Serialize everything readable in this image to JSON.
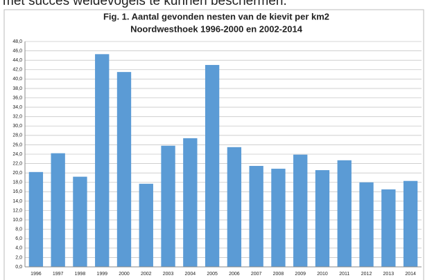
{
  "page_text": "met succes weidevogels te kunnen beschermen.",
  "chart_data": {
    "type": "bar",
    "title": "Fig. 1. Aantal gevonden nesten van de kievit per km2",
    "subtitle": "Noordwesthoek 1996-2000 en 2002-2014",
    "categories": [
      "1996",
      "1997",
      "1998",
      "1999",
      "2000",
      "2002",
      "2003",
      "2004",
      "2005",
      "2006",
      "2007",
      "2008",
      "2009",
      "2010",
      "2011",
      "2012",
      "2013",
      "2014"
    ],
    "values": [
      20.2,
      24.2,
      19.2,
      45.3,
      41.5,
      17.7,
      25.8,
      27.4,
      43.0,
      25.5,
      21.5,
      20.9,
      23.9,
      20.6,
      22.7,
      18.0,
      16.5,
      18.3
    ],
    "color": "#5b9bd5",
    "ylim": [
      0,
      48
    ],
    "yticks": [
      {
        "value": 0,
        "label": "0,0"
      },
      {
        "value": 2,
        "label": "2,0"
      },
      {
        "value": 4,
        "label": "4,0"
      },
      {
        "value": 6,
        "label": "6,0"
      },
      {
        "value": 8,
        "label": "8,0"
      },
      {
        "value": 10,
        "label": "10,0"
      },
      {
        "value": 12,
        "label": "12,0"
      },
      {
        "value": 14,
        "label": "14,0"
      },
      {
        "value": 16,
        "label": "16,0"
      },
      {
        "value": 18,
        "label": "18,0"
      },
      {
        "value": 20,
        "label": "20,0"
      },
      {
        "value": 22,
        "label": "22,0"
      },
      {
        "value": 24,
        "label": "24,0"
      },
      {
        "value": 26,
        "label": "26,0"
      },
      {
        "value": 28,
        "label": "28,0"
      },
      {
        "value": 30,
        "label": "30,0"
      },
      {
        "value": 32,
        "label": "32,0"
      },
      {
        "value": 34,
        "label": "34,0"
      },
      {
        "value": 36,
        "label": "36,0"
      },
      {
        "value": 38,
        "label": "38,0"
      },
      {
        "value": 40,
        "label": "40,0"
      },
      {
        "value": 42,
        "label": "42,0"
      },
      {
        "value": 44,
        "label": "44,0"
      },
      {
        "value": 46,
        "label": "46,0"
      },
      {
        "value": 48,
        "label": "48,0"
      }
    ],
    "grid": true
  }
}
